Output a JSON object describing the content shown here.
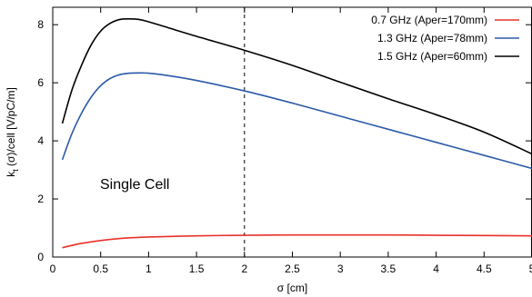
{
  "chart_data": {
    "type": "line",
    "xlabel": "σ [cm]",
    "ylabel_main": "k",
    "ylabel_sub": "t",
    "ylabel_rest": " (σ)/cell  [V/pC/m]",
    "xlim": [
      0,
      5
    ],
    "ylim": [
      0,
      8.6
    ],
    "xticks": [
      0,
      0.5,
      1,
      1.5,
      2,
      2.5,
      3,
      3.5,
      4,
      4.5,
      5
    ],
    "xtick_labels": [
      "0",
      "0.5",
      "1",
      "1.5",
      "2",
      "2.5",
      "3",
      "3.5",
      "4",
      "4.5",
      "5"
    ],
    "yticks": [
      0,
      2,
      4,
      6,
      8
    ],
    "ytick_labels": [
      "0",
      "2",
      "4",
      "6",
      "8"
    ],
    "grid": false,
    "legend_position": "top-right",
    "annotation": "Single Cell",
    "vline_x": 2,
    "series": [
      {
        "name": "0.7 GHz (Aper=170mm)",
        "color": "#e8312a",
        "x": [
          0.1,
          0.2,
          0.3,
          0.5,
          0.75,
          1.0,
          1.5,
          2.0,
          2.5,
          3.0,
          3.5,
          4.0,
          4.5,
          5.0
        ],
        "y": [
          0.32,
          0.4,
          0.47,
          0.57,
          0.65,
          0.69,
          0.73,
          0.75,
          0.76,
          0.76,
          0.76,
          0.75,
          0.74,
          0.73
        ]
      },
      {
        "name": "1.3 GHz (Aper=78mm)",
        "color": "#2b5aa8",
        "x": [
          0.1,
          0.2,
          0.3,
          0.4,
          0.5,
          0.6,
          0.7,
          0.8,
          0.9,
          1.0,
          1.2,
          1.5,
          2.0,
          2.5,
          3.0,
          3.5,
          4.0,
          4.5,
          5.0
        ],
        "y": [
          3.35,
          4.25,
          4.95,
          5.5,
          5.9,
          6.15,
          6.28,
          6.33,
          6.34,
          6.33,
          6.25,
          6.08,
          5.72,
          5.3,
          4.85,
          4.4,
          3.95,
          3.5,
          3.05
        ]
      },
      {
        "name": "1.5 GHz (Aper=60mm)",
        "color": "#000000",
        "x": [
          0.1,
          0.2,
          0.3,
          0.4,
          0.5,
          0.6,
          0.7,
          0.8,
          0.9,
          1.0,
          1.2,
          1.5,
          2.0,
          2.5,
          3.0,
          3.5,
          4.0,
          4.5,
          5.0
        ],
        "y": [
          4.6,
          5.75,
          6.6,
          7.3,
          7.78,
          8.05,
          8.18,
          8.2,
          8.18,
          8.1,
          7.9,
          7.6,
          7.12,
          6.6,
          6.02,
          5.45,
          4.9,
          4.3,
          3.55
        ]
      }
    ]
  }
}
